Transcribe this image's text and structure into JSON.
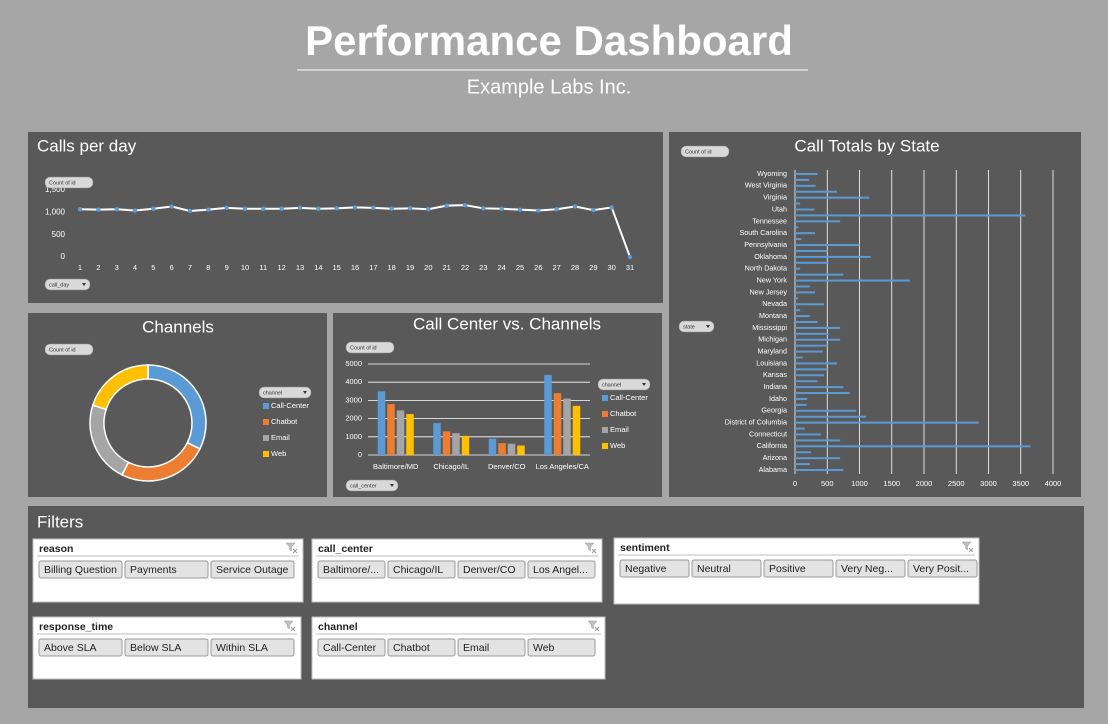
{
  "header": {
    "title": "Performance Dashboard",
    "subtitle": "Example Labs Inc."
  },
  "chart_data": [
    {
      "type": "line",
      "title": "Calls per day",
      "value_button": "Count of id",
      "axis_button": "call_day",
      "categories": [
        1,
        2,
        3,
        4,
        5,
        6,
        7,
        8,
        9,
        10,
        11,
        12,
        13,
        14,
        15,
        16,
        17,
        18,
        19,
        20,
        21,
        22,
        23,
        24,
        25,
        26,
        27,
        28,
        29,
        30,
        31
      ],
      "values": [
        1070,
        1060,
        1070,
        1040,
        1080,
        1130,
        1030,
        1060,
        1100,
        1080,
        1080,
        1080,
        1100,
        1080,
        1090,
        1110,
        1100,
        1080,
        1090,
        1070,
        1150,
        1160,
        1090,
        1080,
        1060,
        1040,
        1070,
        1130,
        1050,
        1110,
        0
      ],
      "color": "#ffffff",
      "marker_color": "#5b9bd5",
      "ylim": [
        0,
        1500
      ],
      "yticks": [
        0,
        500,
        {
          "value": 1000,
          "label": "1,000"
        },
        {
          "value": 1500,
          "label": "1,500"
        }
      ],
      "grid": false
    },
    {
      "type": "pie",
      "title": "Channels",
      "value_button": "Count of id",
      "legend_button": "channel",
      "donut": true,
      "categories": [
        "Call-Center",
        "Chatbot",
        "Email",
        "Web"
      ],
      "values": [
        10550,
        8150,
        7370,
        6520
      ],
      "colors": [
        "#5b9bd5",
        "#ed7d31",
        "#a5a5a5",
        "#ffc000"
      ]
    },
    {
      "type": "bar",
      "title": "Call Center vs. Channels",
      "value_button": "Count of id",
      "axis_button": "call_center",
      "legend_button": "channel",
      "categories": [
        "Baltimore/MD",
        "Chicago/IL",
        "Denver/CO",
        "Los Angeles/CA"
      ],
      "series": [
        {
          "name": "Call-Center",
          "color": "#5b9bd5",
          "values": [
            3500,
            1750,
            900,
            4400
          ]
        },
        {
          "name": "Chatbot",
          "color": "#ed7d31",
          "values": [
            2800,
            1300,
            650,
            3400
          ]
        },
        {
          "name": "Email",
          "color": "#a5a5a5",
          "values": [
            2450,
            1200,
            620,
            3100
          ]
        },
        {
          "name": "Web",
          "color": "#ffc000",
          "values": [
            2250,
            1050,
            520,
            2700
          ]
        }
      ],
      "ylim": [
        0,
        5000
      ],
      "yticks": [
        0,
        1000,
        2000,
        3000,
        4000,
        5000
      ],
      "grid": true
    },
    {
      "type": "hbar",
      "title": "Call Totals by State",
      "value_button": "Count of id",
      "axis_button": "state",
      "categories": [
        "Alabama",
        null,
        "Arizona",
        null,
        "California",
        null,
        "Connecticut",
        null,
        "District of Columbia",
        null,
        "Georgia",
        null,
        "Idaho",
        null,
        "Indiana",
        null,
        "Kansas",
        null,
        "Louisiana",
        null,
        "Maryland",
        null,
        "Michigan",
        null,
        "Mississippi",
        null,
        "Montana",
        null,
        "Nevada",
        null,
        "New Jersey",
        null,
        "New York",
        null,
        "North Dakota",
        null,
        "Oklahoma",
        null,
        "Pennsylvania",
        null,
        "South Carolina",
        null,
        "Tennessee",
        null,
        "Utah",
        null,
        "Virginia",
        null,
        "West Virginia",
        null,
        "Wyoming"
      ],
      "values": [
        750,
        230,
        700,
        250,
        3650,
        700,
        400,
        150,
        2850,
        1100,
        950,
        180,
        190,
        850,
        750,
        350,
        450,
        500,
        650,
        120,
        430,
        500,
        700,
        520,
        700,
        350,
        230,
        80,
        450,
        50,
        310,
        230,
        1780,
        750,
        80,
        520,
        1170,
        500,
        1000,
        100,
        310,
        50,
        700,
        3570,
        300,
        80,
        1150,
        650,
        320,
        220,
        350
      ],
      "color": "#5b9bd5",
      "xlim": [
        0,
        4000
      ],
      "xticks": [
        0,
        500,
        1000,
        1500,
        2000,
        2500,
        3000,
        3500,
        4000
      ],
      "grid": true
    }
  ],
  "filters": {
    "title": "Filters",
    "slicers": [
      {
        "name": "reason",
        "items": [
          "Billing Question",
          "Payments",
          "Service Outage"
        ]
      },
      {
        "name": "call_center",
        "items": [
          "Baltimore/...",
          "Chicago/IL",
          "Denver/CO",
          "Los Angel..."
        ]
      },
      {
        "name": "sentiment",
        "items": [
          "Negative",
          "Neutral",
          "Positive",
          "Very Neg...",
          "Very Posit..."
        ]
      },
      {
        "name": "response_time",
        "items": [
          "Above SLA",
          "Below SLA",
          "Within SLA"
        ]
      },
      {
        "name": "channel",
        "items": [
          "Call-Center",
          "Chatbot",
          "Email",
          "Web"
        ]
      }
    ]
  }
}
